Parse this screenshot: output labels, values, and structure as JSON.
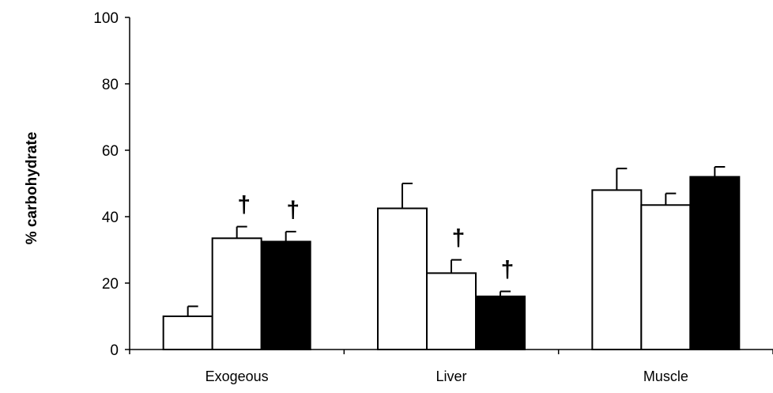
{
  "chart_data": {
    "type": "bar",
    "ylabel": "% carbohydrate",
    "xlabel": "",
    "ylim": [
      0,
      100
    ],
    "yticks": [
      0,
      20,
      40,
      60,
      80,
      100
    ],
    "categories": [
      "Exogeous",
      "Liver",
      "Muscle"
    ],
    "series": [
      {
        "values": [
          10,
          42.5,
          48
        ],
        "errors": [
          3,
          7.5,
          6.5
        ],
        "fill": "#ffffff",
        "annotations": [
          "",
          "",
          ""
        ]
      },
      {
        "values": [
          33.5,
          23,
          43.5
        ],
        "errors": [
          3.5,
          4,
          3.5
        ],
        "fill": "#ffffff",
        "annotations": [
          "†",
          "†",
          ""
        ]
      },
      {
        "values": [
          32.5,
          16,
          52
        ],
        "errors": [
          3,
          1.5,
          3
        ],
        "fill": "#000000",
        "annotations": [
          "†",
          "†",
          ""
        ]
      }
    ],
    "grid": false,
    "legend": "none"
  }
}
